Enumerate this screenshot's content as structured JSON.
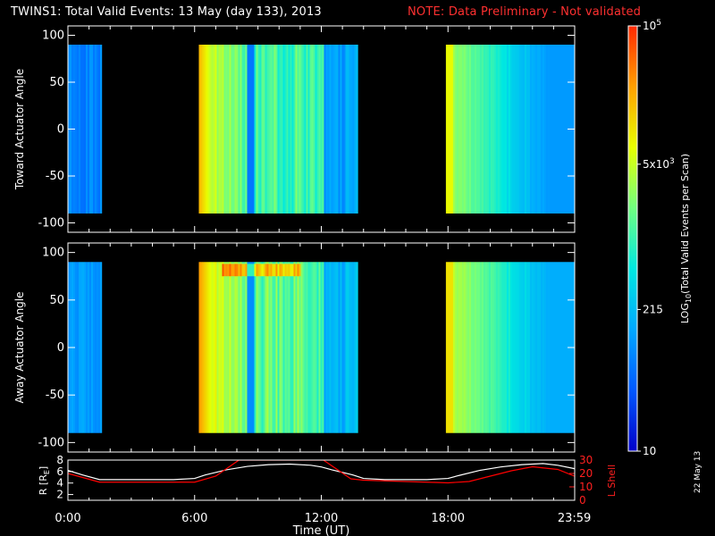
{
  "header": {
    "title": "TWINS1: Total Valid Events: 13 May (day 133), 2013",
    "note": "NOTE: Data Preliminary - Not validated"
  },
  "footer": {
    "date_stamp": "22 May 13"
  },
  "chart_data": [
    {
      "type": "heatmap",
      "name": "toward-panel",
      "ylabel": "Toward Actuator Angle",
      "xlim": [
        0,
        24
      ],
      "ylim": [
        -110,
        110
      ],
      "angle_range": [
        -90,
        90
      ],
      "yticks": [
        -100,
        -50,
        0,
        50,
        100
      ],
      "ytick_labels": [
        "-100",
        "-50",
        "0",
        "50",
        "100"
      ],
      "data_segments": [
        {
          "t_start": 0.0,
          "t_end": 1.6,
          "level": 0.22
        },
        {
          "t_start": 6.2,
          "t_end": 13.7,
          "level": 0.55
        },
        {
          "t_start": 17.9,
          "t_end": 23.99,
          "level": 0.42
        }
      ],
      "band": {
        "angle_min": 75,
        "angle_max": 88,
        "t_start": 7.3,
        "t_end": 11.0,
        "boost": 0
      },
      "grid": false
    },
    {
      "type": "heatmap",
      "name": "away-panel",
      "ylabel": "Away Actuator Angle",
      "xlim": [
        0,
        24
      ],
      "ylim": [
        -110,
        110
      ],
      "angle_range": [
        -90,
        90
      ],
      "yticks": [
        -100,
        -50,
        0,
        50,
        100
      ],
      "ytick_labels": [
        "-100",
        "-50",
        "0",
        "50",
        "100"
      ],
      "data_segments": [
        {
          "t_start": 0.0,
          "t_end": 1.6,
          "level": 0.22
        },
        {
          "t_start": 6.2,
          "t_end": 13.7,
          "level": 0.55
        },
        {
          "t_start": 17.9,
          "t_end": 23.99,
          "level": 0.42
        }
      ],
      "band": {
        "angle_min": 75,
        "angle_max": 88,
        "t_start": 7.3,
        "t_end": 11.0,
        "boost": 0.25
      },
      "grid": false
    },
    {
      "type": "line",
      "name": "orbit-panel",
      "xlabel": "Time (UT)",
      "xlim": [
        0,
        24
      ],
      "xticks": [
        0,
        6,
        12,
        18,
        23.983
      ],
      "xtick_labels": [
        "0:00",
        "6:00",
        "12:00",
        "18:00",
        "23:59"
      ],
      "left_axis": {
        "label": "R [RE]",
        "label_main": "R [R",
        "label_sub": "E",
        "label_close": "]",
        "ylim": [
          1,
          8
        ],
        "yticks": [
          2,
          4,
          6,
          8
        ],
        "ytick_labels": [
          "2",
          "4",
          "6",
          "8"
        ]
      },
      "right_axis": {
        "label": "L Shell",
        "ylim": [
          0,
          30
        ],
        "yticks": [
          0,
          10,
          20,
          30
        ],
        "ytick_labels": [
          "0",
          "10",
          "20",
          "30"
        ]
      },
      "series": [
        {
          "name": "R",
          "color": "#ffffff",
          "x": [
            0,
            0.7,
            1.5,
            3,
            5,
            6,
            6.5,
            7.5,
            8.5,
            9.5,
            10.5,
            11.5,
            12,
            12.5,
            13.5,
            14,
            15,
            16,
            17,
            18,
            18.5,
            19.5,
            20.5,
            21.5,
            22.5,
            23.2,
            23.99
          ],
          "y": [
            6.2,
            5.4,
            4.6,
            4.6,
            4.6,
            4.8,
            5.4,
            6.3,
            6.9,
            7.2,
            7.3,
            7.1,
            6.8,
            6.3,
            5.4,
            4.8,
            4.6,
            4.6,
            4.6,
            4.8,
            5.3,
            6.2,
            6.8,
            7.2,
            7.4,
            7.1,
            6.5
          ]
        },
        {
          "name": "L Shell",
          "color": "#ff0000",
          "x": [
            0,
            0.7,
            1.5,
            3,
            5,
            6,
            7,
            8.1,
            8.15,
            12,
            12.1,
            13.4,
            14,
            15,
            16,
            17,
            18,
            19,
            20,
            21,
            22,
            23.2,
            23.99
          ],
          "y": [
            20,
            17,
            13.5,
            13.5,
            13.5,
            13.5,
            18,
            30,
            30,
            30,
            30,
            16,
            15,
            14.5,
            14,
            13.5,
            13,
            14,
            18,
            22,
            25,
            23,
            18
          ]
        }
      ]
    }
  ],
  "colorbar": {
    "label": "LOG10(Total Valid Events per Scan)",
    "label_main": "LOG",
    "label_sub": "10",
    "label_rest": "(Total Valid Events per Scan)",
    "scale": [
      10,
      100000
    ],
    "ticks": [
      {
        "value": 100000,
        "label_main": "10",
        "label_sup": "5",
        "label": "10^5"
      },
      {
        "value": 5000,
        "label_main": "5x10",
        "label_sup": "3",
        "label": "5x10^3"
      },
      {
        "value": 215,
        "label_main": "215",
        "label_sup": "",
        "label": "215"
      },
      {
        "value": 10,
        "label_main": "10",
        "label_sup": "",
        "label": "10"
      }
    ],
    "colors": [
      "#0000c8",
      "#0058ff",
      "#00a8ff",
      "#00e8e0",
      "#70ff80",
      "#e8ff00",
      "#ffa000",
      "#ff2800"
    ]
  }
}
